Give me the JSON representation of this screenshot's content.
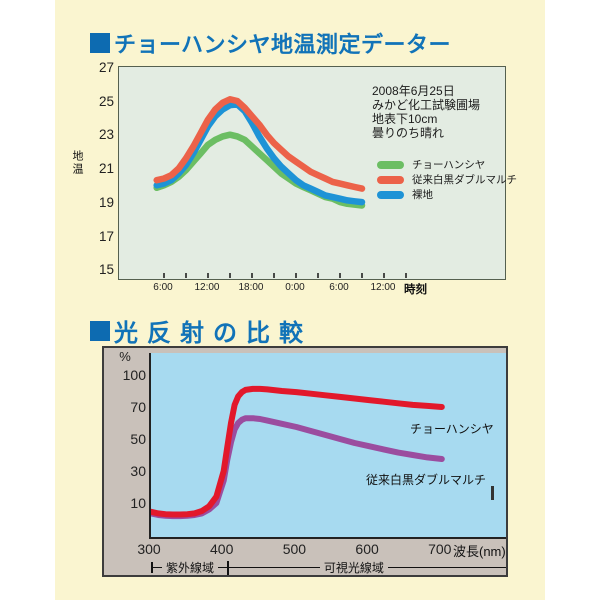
{
  "page": {
    "outer_bg": "#ffffff",
    "panel_bg": "#faf5d0",
    "title_color": "#1173b8",
    "bullet_color": "#0d6bb1"
  },
  "chart_data": [
    {
      "type": "line",
      "title": "チョーハンシヤ地温測定データー",
      "ylabel": "地温",
      "xlabel": "時刻",
      "ylim": [
        15,
        27
      ],
      "yticks": [
        27,
        25,
        23,
        21,
        19,
        17,
        15
      ],
      "x_tick_labels": [
        "6:00",
        "12:00",
        "18:00",
        "0:00",
        "6:00",
        "12:00"
      ],
      "x_tick_hours": [
        6,
        12,
        18,
        24,
        30,
        36
      ],
      "grid": false,
      "legend_position": "right-inside",
      "plot_bg": "#e3ece2",
      "annotation": [
        "2008年6月25日",
        "みかど化工試験圃場",
        "地表下10cm",
        "曇りのち晴れ"
      ],
      "x_hours": [
        5,
        6,
        7,
        8,
        9,
        10,
        11,
        12,
        13,
        14,
        15,
        16,
        17,
        18,
        19,
        20,
        21,
        22,
        23,
        24,
        25,
        26,
        27,
        28,
        29,
        30,
        31,
        32,
        33
      ],
      "series": [
        {
          "name": "チョーハンシヤ",
          "color": "#6cbe63",
          "values": [
            19.95,
            20.1,
            20.3,
            20.6,
            21.0,
            21.5,
            22.0,
            22.5,
            22.8,
            23.0,
            23.1,
            23.0,
            22.8,
            22.4,
            22.0,
            21.6,
            21.2,
            20.8,
            20.5,
            20.2,
            20.0,
            19.8,
            19.6,
            19.4,
            19.3,
            19.1,
            19.0,
            18.95,
            18.9
          ]
        },
        {
          "name": "従来白黒ダブルマルチ",
          "color": "#ec6249",
          "values": [
            20.4,
            20.5,
            20.7,
            21.1,
            21.7,
            22.4,
            23.2,
            24.0,
            24.6,
            25.0,
            25.2,
            25.1,
            24.7,
            24.2,
            23.7,
            23.1,
            22.6,
            22.2,
            21.8,
            21.5,
            21.2,
            20.9,
            20.7,
            20.5,
            20.3,
            20.2,
            20.1,
            20.0,
            19.9
          ]
        },
        {
          "name": "裸地",
          "color": "#1e93d6",
          "values": [
            20.1,
            20.2,
            20.4,
            20.8,
            21.3,
            22.0,
            22.8,
            23.6,
            24.2,
            24.6,
            24.85,
            24.9,
            24.5,
            23.8,
            23.0,
            22.3,
            21.7,
            21.2,
            20.8,
            20.4,
            20.1,
            19.9,
            19.7,
            19.5,
            19.4,
            19.3,
            19.2,
            19.15,
            19.1
          ]
        }
      ]
    },
    {
      "type": "line",
      "title": "光反射の比較",
      "ylabel": "%",
      "xlabel": "波長(nm)",
      "xlim": [
        300,
        790
      ],
      "ylim": [
        0,
        110
      ],
      "yticks": [
        10,
        30,
        50,
        70,
        100
      ],
      "xticks": [
        300,
        400,
        500,
        600,
        700
      ],
      "grid": false,
      "plot_bg": "#a7daf0",
      "frame_bg": "#c9c1ba",
      "x_nm": [
        300,
        310,
        320,
        330,
        340,
        350,
        360,
        370,
        380,
        390,
        400,
        405,
        410,
        415,
        420,
        425,
        430,
        440,
        450,
        460,
        480,
        500,
        520,
        540,
        560,
        580,
        600,
        620,
        640,
        660,
        680,
        700
      ],
      "series": [
        {
          "name": "チョーハンシヤ",
          "color": "#e2182b",
          "values": [
            4.5,
            3.5,
            3.0,
            2.8,
            2.8,
            3.0,
            3.5,
            5.0,
            8.0,
            14.0,
            30.0,
            45.0,
            60.0,
            72.0,
            80.0,
            84.0,
            86.0,
            87.0,
            87.0,
            86.5,
            85.0,
            84.0,
            82.5,
            81.0,
            79.5,
            78.0,
            76.5,
            75.0,
            73.5,
            72.0,
            71.0,
            70.0
          ]
        },
        {
          "name": "従来白黒ダブルマルチ",
          "color": "#9b4d9f",
          "values": [
            3.5,
            2.5,
            2.0,
            1.8,
            1.8,
            2.0,
            2.5,
            3.5,
            6.0,
            10.0,
            24.0,
            37.0,
            48.0,
            56.0,
            60.0,
            62.0,
            63.0,
            63.0,
            62.5,
            61.5,
            59.5,
            57.5,
            55.0,
            52.5,
            50.0,
            47.5,
            45.5,
            43.5,
            41.5,
            40.0,
            38.5,
            37.5
          ]
        }
      ],
      "regions": [
        {
          "label": "紫外線域",
          "range": [
            300,
            400
          ]
        },
        {
          "label": "可視光線域",
          "range": [
            400,
            700
          ]
        }
      ]
    }
  ]
}
